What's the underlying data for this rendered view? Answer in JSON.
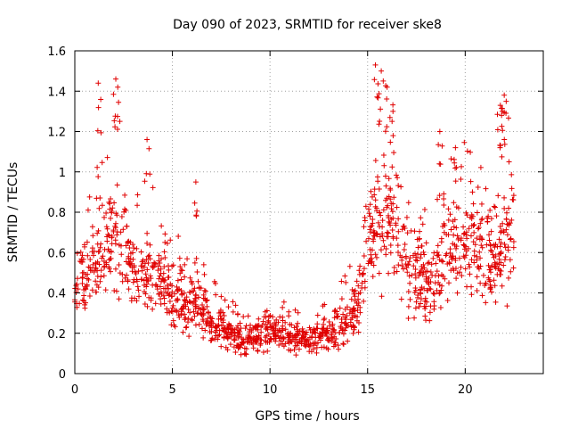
{
  "chart_data": {
    "type": "scatter",
    "title": "Day 090 of 2023, SRMTID for receiver ske8",
    "xlabel": "GPS time / hours",
    "ylabel": "SRMTID / TECUs",
    "xlim": [
      0,
      24
    ],
    "ylim": [
      0,
      1.6
    ],
    "xticks": [
      0,
      5,
      10,
      15,
      20
    ],
    "xtick_labels": [
      "0",
      "5",
      "10",
      "15",
      "20"
    ],
    "yticks": [
      0,
      0.2,
      0.4,
      0.6,
      0.8,
      1,
      1.2,
      1.4,
      1.6
    ],
    "ytick_labels": [
      "0",
      "0.2",
      "0.4",
      "0.6",
      "0.8",
      "1",
      "1.2",
      "1.4",
      "1.6"
    ],
    "grid": true,
    "marker": "+",
    "color": "#e00000",
    "series": [
      {
        "name": "SRMTID",
        "profile": [
          [
            0.0,
            0.42
          ],
          [
            0.5,
            0.45
          ],
          [
            1.0,
            0.55
          ],
          [
            1.5,
            0.62
          ],
          [
            2.0,
            0.66
          ],
          [
            2.5,
            0.62
          ],
          [
            3.0,
            0.5
          ],
          [
            3.5,
            0.48
          ],
          [
            4.0,
            0.5
          ],
          [
            4.5,
            0.47
          ],
          [
            5.0,
            0.4
          ],
          [
            5.5,
            0.36
          ],
          [
            6.0,
            0.35
          ],
          [
            6.5,
            0.32
          ],
          [
            7.0,
            0.26
          ],
          [
            7.5,
            0.22
          ],
          [
            8.0,
            0.2
          ],
          [
            8.5,
            0.17
          ],
          [
            9.0,
            0.17
          ],
          [
            9.5,
            0.19
          ],
          [
            10.0,
            0.21
          ],
          [
            10.5,
            0.2
          ],
          [
            11.0,
            0.19
          ],
          [
            11.5,
            0.17
          ],
          [
            12.0,
            0.17
          ],
          [
            12.5,
            0.18
          ],
          [
            13.0,
            0.2
          ],
          [
            13.5,
            0.24
          ],
          [
            14.0,
            0.28
          ],
          [
            14.5,
            0.32
          ],
          [
            15.0,
            0.62
          ],
          [
            15.5,
            0.82
          ],
          [
            16.0,
            0.8
          ],
          [
            16.5,
            0.68
          ],
          [
            17.0,
            0.55
          ],
          [
            17.5,
            0.5
          ],
          [
            18.0,
            0.44
          ],
          [
            18.5,
            0.46
          ],
          [
            19.0,
            0.58
          ],
          [
            19.5,
            0.66
          ],
          [
            20.0,
            0.64
          ],
          [
            20.5,
            0.62
          ],
          [
            21.0,
            0.62
          ],
          [
            21.5,
            0.52
          ],
          [
            22.0,
            0.58
          ],
          [
            22.5,
            0.66
          ]
        ],
        "spread_fraction": 0.45,
        "n_points": 1500,
        "peaks": [
          [
            1.2,
            1.44
          ],
          [
            2.1,
            1.46
          ],
          [
            2.2,
            1.42
          ],
          [
            3.7,
            1.16
          ],
          [
            6.2,
            0.95
          ],
          [
            15.4,
            1.53
          ],
          [
            15.7,
            1.5
          ],
          [
            16.0,
            1.42
          ],
          [
            16.3,
            1.3
          ],
          [
            21.8,
            1.33
          ],
          [
            22.0,
            1.38
          ],
          [
            22.1,
            1.35
          ],
          [
            21.9,
            1.3
          ],
          [
            18.7,
            1.2
          ],
          [
            19.5,
            1.12
          ]
        ]
      }
    ]
  }
}
